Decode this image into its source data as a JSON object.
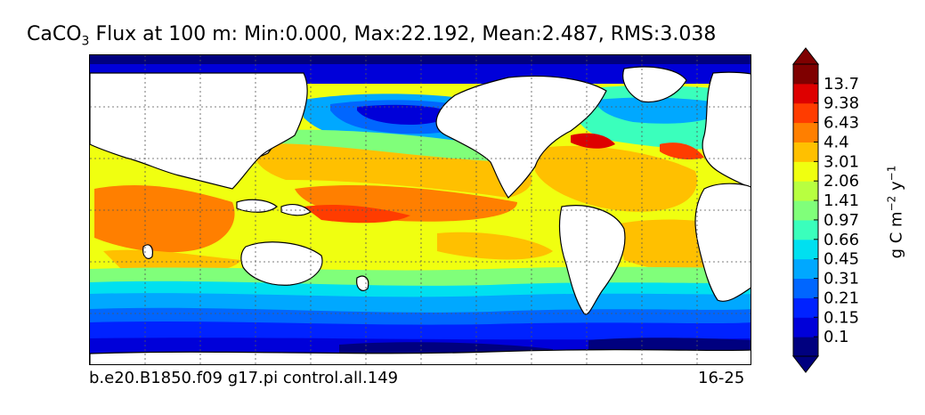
{
  "title": {
    "prefix": "CaCO",
    "subscript": "3",
    "text": " Flux at 100 m: Min:0.000, Max:22.192, Mean:2.487, RMS:3.038"
  },
  "footer": {
    "run_id": "b.e20.B1850.f09 g17.pi control.all.149",
    "years": "16-25"
  },
  "colorbar": {
    "units": {
      "a": "g C m",
      "b": "−2",
      "c": " y",
      "d": "−1"
    },
    "levels": [
      "0.1",
      "0.15",
      "0.21",
      "0.31",
      "0.45",
      "0.66",
      "0.97",
      "1.41",
      "2.06",
      "3.01",
      "4.4",
      "6.43",
      "9.38",
      "13.7"
    ],
    "colors": [
      "#00007f",
      "#0000d9",
      "#0022ff",
      "#0066ff",
      "#00a8ff",
      "#00e0f0",
      "#3affbc",
      "#80ff7a",
      "#b8ff40",
      "#f0ff10",
      "#ffc000",
      "#ff7f00",
      "#ff3c00",
      "#de0000",
      "#7f0000"
    ]
  },
  "map": {
    "land_color": "#ffffff",
    "gridlines": "dotted"
  }
}
